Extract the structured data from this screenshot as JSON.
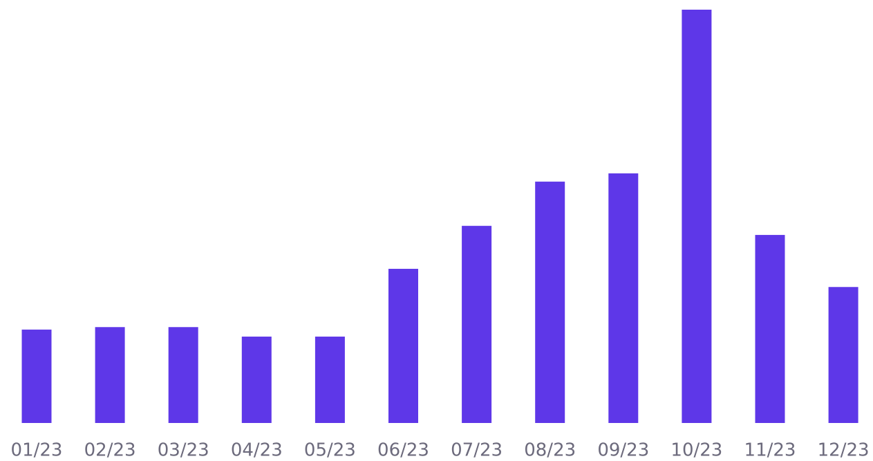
{
  "chart_data": {
    "type": "bar",
    "categories": [
      "01/23",
      "02/23",
      "03/23",
      "04/23",
      "05/23",
      "06/23",
      "07/23",
      "08/23",
      "09/23",
      "10/23",
      "11/23",
      "12/23"
    ],
    "values": [
      22.6,
      23.2,
      23.2,
      20.9,
      20.9,
      37.3,
      47.7,
      58.4,
      60.4,
      100,
      45.5,
      32.9
    ],
    "color": "#5e37e8",
    "ylim": [
      0,
      100
    ]
  }
}
